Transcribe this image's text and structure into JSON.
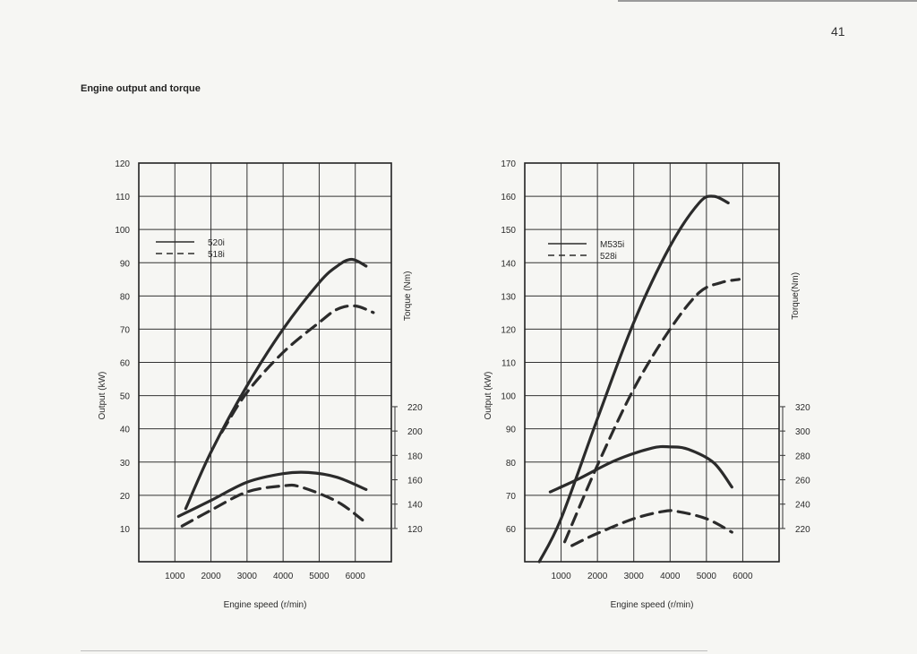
{
  "page": {
    "number": "41",
    "title": "Engine output and torque"
  },
  "chart_data": [
    {
      "type": "line",
      "xlabel": "Engine speed (r/min)",
      "ylabel": "Output (kW)",
      "y2label": "Torque (Nm)",
      "xlim": [
        0,
        7000
      ],
      "ylim": [
        0,
        120
      ],
      "x_ticks": [
        1000,
        2000,
        3000,
        4000,
        5000,
        6000
      ],
      "y_ticks": [
        10,
        20,
        30,
        40,
        50,
        60,
        70,
        80,
        90,
        100,
        110,
        120
      ],
      "y2_ticks": [
        120,
        140,
        160,
        180,
        200,
        220
      ],
      "y2_scale": {
        "y2_at_ymin": 120,
        "ymin": 10,
        "y2_per_y": 2.727
      },
      "legend": [
        {
          "name": "520i",
          "style": "solid"
        },
        {
          "name": "518i",
          "style": "dashed"
        }
      ],
      "series": [
        {
          "name": "520i",
          "quantity": "output",
          "axis": "left",
          "style": "solid",
          "x": [
            1300,
            2000,
            3000,
            4000,
            5000,
            5500,
            5900,
            6300
          ],
          "y": [
            16,
            33,
            53,
            70,
            84,
            89,
            91,
            89
          ]
        },
        {
          "name": "518i",
          "quantity": "output",
          "axis": "left",
          "style": "dashed",
          "x": [
            2300,
            3000,
            4000,
            5000,
            5500,
            6000,
            6500
          ],
          "y": [
            39,
            51,
            63,
            72,
            76,
            77,
            75
          ]
        },
        {
          "name": "520i",
          "quantity": "torque",
          "axis": "right",
          "style": "solid",
          "x": [
            1100,
            2000,
            3000,
            4000,
            4700,
            5500,
            6300
          ],
          "y": [
            130,
            143,
            158,
            165,
            166,
            162,
            152
          ]
        },
        {
          "name": "518i",
          "quantity": "torque",
          "axis": "right",
          "style": "dashed",
          "x": [
            1200,
            2000,
            3000,
            4000,
            4500,
            5500,
            6200
          ],
          "y": [
            122,
            135,
            150,
            155,
            154,
            142,
            127
          ]
        }
      ]
    },
    {
      "type": "line",
      "xlabel": "Engine speed (r/min)",
      "ylabel": "Output (kW)",
      "y2label": "Torque(Nm)",
      "xlim": [
        0,
        7000
      ],
      "ylim": [
        50,
        170
      ],
      "x_ticks": [
        1000,
        2000,
        3000,
        4000,
        5000,
        6000
      ],
      "y_ticks": [
        60,
        70,
        80,
        90,
        100,
        110,
        120,
        130,
        140,
        150,
        160,
        170
      ],
      "y2_ticks": [
        220,
        240,
        260,
        280,
        300,
        320
      ],
      "y2_scale": {
        "y2_at_ymin": 220,
        "ymin": 60,
        "y2_per_y": 2.727
      },
      "legend": [
        {
          "name": "M535i",
          "style": "solid"
        },
        {
          "name": "528i",
          "style": "dashed"
        }
      ],
      "series": [
        {
          "name": "M535i",
          "quantity": "output",
          "axis": "left",
          "style": "solid",
          "x": [
            400,
            1000,
            2000,
            3000,
            4000,
            4800,
            5200,
            5600
          ],
          "y": [
            50,
            63,
            93,
            122,
            145,
            158,
            160,
            158
          ]
        },
        {
          "name": "528i",
          "quantity": "output",
          "axis": "left",
          "style": "dashed",
          "x": [
            1100,
            2000,
            3000,
            4000,
            4800,
            5400,
            5900
          ],
          "y": [
            56,
            79,
            102,
            120,
            131,
            134,
            135
          ]
        },
        {
          "name": "M535i",
          "quantity": "torque",
          "axis": "right",
          "style": "solid",
          "x": [
            700,
            1500,
            2500,
            3500,
            4000,
            4500,
            5200,
            5700
          ],
          "y": [
            250,
            261,
            276,
            286,
            287,
            285,
            274,
            254
          ]
        },
        {
          "name": "528i",
          "quantity": "torque",
          "axis": "right",
          "style": "dashed",
          "x": [
            1300,
            2000,
            3000,
            3800,
            4200,
            5000,
            5700
          ],
          "y": [
            206,
            216,
            228,
            234,
            234,
            228,
            217
          ]
        }
      ]
    }
  ]
}
